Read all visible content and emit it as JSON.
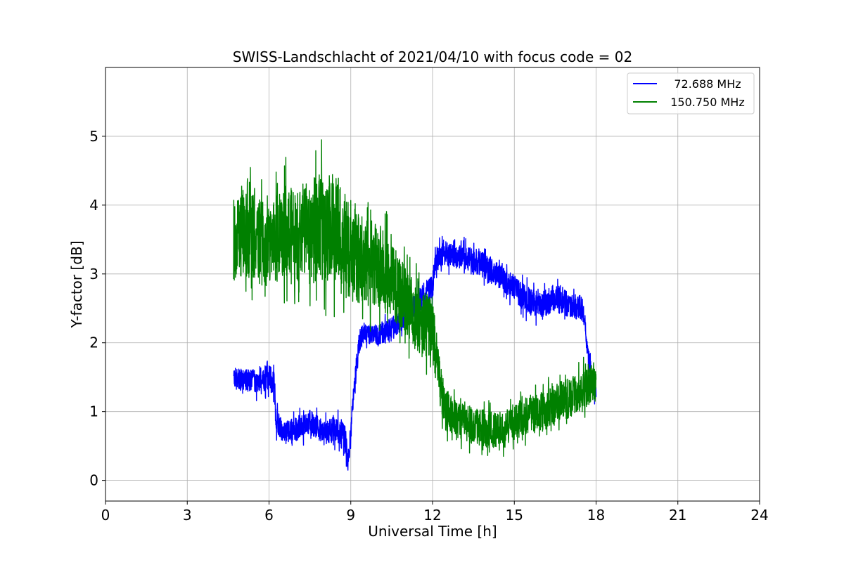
{
  "chart_data": {
    "type": "line",
    "title": "SWISS-Landschlacht of 2021/04/10 with focus code = 02",
    "xlabel": "Universal Time [h]",
    "ylabel": "Y-factor [dB]",
    "xlim": [
      0,
      24
    ],
    "ylim": [
      -0.3,
      6.0
    ],
    "xticks": [
      0,
      3,
      6,
      9,
      12,
      15,
      18,
      21,
      24
    ],
    "xtick_labels": [
      "0",
      "3",
      "6",
      "9",
      "12",
      "15",
      "18",
      "21",
      "24"
    ],
    "yticks": [
      0,
      1,
      2,
      3,
      4,
      5
    ],
    "ytick_labels": [
      "0",
      "1",
      "2",
      "3",
      "4",
      "5"
    ],
    "grid": true,
    "legend_position": "upper right",
    "legend": [
      "72.688 MHz",
      "150.750 MHz"
    ],
    "series": [
      {
        "name": "72.688 MHz",
        "color": "#0000ff",
        "x": [
          4.7,
          5.0,
          5.5,
          6.0,
          6.2,
          6.25,
          6.5,
          7.0,
          7.5,
          8.0,
          8.5,
          8.8,
          8.9,
          9.1,
          9.3,
          9.5,
          10.0,
          10.5,
          11.0,
          11.5,
          12.0,
          12.1,
          12.5,
          13.0,
          13.5,
          14.0,
          14.5,
          15.0,
          15.5,
          16.0,
          16.5,
          17.0,
          17.5,
          17.7,
          17.9,
          18.0
        ],
        "y": [
          1.5,
          1.45,
          1.45,
          1.5,
          1.4,
          0.9,
          0.7,
          0.75,
          0.85,
          0.7,
          0.75,
          0.6,
          0.2,
          1.2,
          2.0,
          2.15,
          2.1,
          2.2,
          2.4,
          2.6,
          2.8,
          3.2,
          3.3,
          3.25,
          3.2,
          3.1,
          2.95,
          2.8,
          2.6,
          2.55,
          2.65,
          2.55,
          2.5,
          1.9,
          1.3,
          1.3
        ],
        "band": [
          0.25,
          0.25,
          0.3,
          0.3,
          0.3,
          0.3,
          0.25,
          0.3,
          0.3,
          0.3,
          0.3,
          0.4,
          0.25,
          0.3,
          0.3,
          0.25,
          0.25,
          0.3,
          0.3,
          0.3,
          0.3,
          0.3,
          0.3,
          0.3,
          0.3,
          0.3,
          0.3,
          0.3,
          0.35,
          0.3,
          0.35,
          0.3,
          0.3,
          0.3,
          0.2,
          0.2
        ]
      },
      {
        "name": "150.750 MHz",
        "color": "#008000",
        "x": [
          4.7,
          5.0,
          5.5,
          6.0,
          6.5,
          7.0,
          7.5,
          8.0,
          8.5,
          9.0,
          9.5,
          10.0,
          10.5,
          11.0,
          11.5,
          12.0,
          12.3,
          12.5,
          13.0,
          13.5,
          14.0,
          14.5,
          15.0,
          15.5,
          16.0,
          16.5,
          17.0,
          17.5,
          17.8,
          18.0
        ],
        "y": [
          3.5,
          3.6,
          3.5,
          3.4,
          3.6,
          3.65,
          3.6,
          3.7,
          3.65,
          3.3,
          3.2,
          3.1,
          2.9,
          2.6,
          2.3,
          2.2,
          1.3,
          1.0,
          0.85,
          0.8,
          0.75,
          0.7,
          0.85,
          0.95,
          1.0,
          1.1,
          1.2,
          1.3,
          1.4,
          1.4
        ],
        "band": [
          1.0,
          1.05,
          1.05,
          1.0,
          1.1,
          1.2,
          1.3,
          1.3,
          1.3,
          1.2,
          1.1,
          1.0,
          0.9,
          0.85,
          0.8,
          0.8,
          0.6,
          0.5,
          0.45,
          0.45,
          0.45,
          0.45,
          0.45,
          0.45,
          0.5,
          0.5,
          0.5,
          0.5,
          0.45,
          0.45
        ]
      }
    ]
  }
}
